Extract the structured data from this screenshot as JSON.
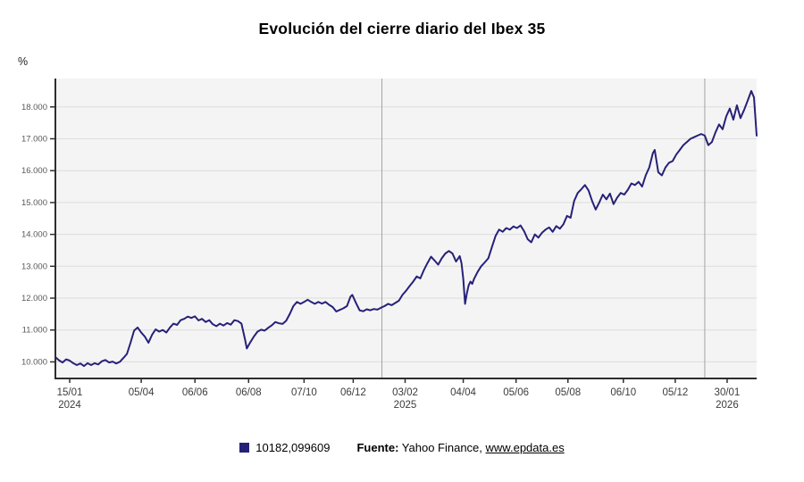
{
  "title": "Evolución del cierre diario del Ibex 35",
  "y_axis_unit": "%",
  "legend": {
    "series_label": "10182,099609"
  },
  "source": {
    "label": "Fuente:",
    "name": "Yahoo Finance,",
    "link": "www.epdata.es"
  },
  "colors": {
    "line": "#262178",
    "legend_swatch": "#262178",
    "plot_bg": "#f4f4f4",
    "grid": "#dcdcdc",
    "axis": "#2e2e2e",
    "year_line": "#a3a3a3"
  },
  "chart_data": {
    "type": "line",
    "title": "Evolución del cierre diario del Ibex 35",
    "ylabel": "%",
    "legend_entries": [
      "10182,099609"
    ],
    "grid": true,
    "ylim": [
      9480,
      18890
    ],
    "y_ticks": [
      {
        "value": 10000,
        "label": "10.000"
      },
      {
        "value": 11000,
        "label": "11.000"
      },
      {
        "value": 12000,
        "label": "12.000"
      },
      {
        "value": 13000,
        "label": "13.000"
      },
      {
        "value": 14000,
        "label": "14.000"
      },
      {
        "value": 15000,
        "label": "15.000"
      },
      {
        "value": 16000,
        "label": "16.000"
      },
      {
        "value": 17000,
        "label": "17.000"
      },
      {
        "value": 18000,
        "label": "18.000"
      }
    ],
    "x_ticks": [
      {
        "f": 0.0204,
        "label": "15/01",
        "year": "2024"
      },
      {
        "f": 0.1224,
        "label": "05/04"
      },
      {
        "f": 0.199,
        "label": "06/06"
      },
      {
        "f": 0.2755,
        "label": "06/08"
      },
      {
        "f": 0.3546,
        "label": "07/10"
      },
      {
        "f": 0.4247,
        "label": "06/12"
      },
      {
        "f": 0.4987,
        "label": "03/02",
        "year": "2025"
      },
      {
        "f": 0.5816,
        "label": "04/04"
      },
      {
        "f": 0.6569,
        "label": "05/06"
      },
      {
        "f": 0.7309,
        "label": "05/08"
      },
      {
        "f": 0.8099,
        "label": "06/10"
      },
      {
        "f": 0.8839,
        "label": "05/12"
      },
      {
        "f": 0.9579,
        "label": "30/01",
        "year": "2026"
      }
    ],
    "year_lines": [
      0.4656,
      0.926
    ],
    "points": [
      [
        0.0,
        10150
      ],
      [
        0.0051,
        10050
      ],
      [
        0.0102,
        9980
      ],
      [
        0.0153,
        10080
      ],
      [
        0.0204,
        10040
      ],
      [
        0.0255,
        9960
      ],
      [
        0.0306,
        9900
      ],
      [
        0.0357,
        9950
      ],
      [
        0.0408,
        9870
      ],
      [
        0.0459,
        9960
      ],
      [
        0.051,
        9900
      ],
      [
        0.0561,
        9960
      ],
      [
        0.0612,
        9920
      ],
      [
        0.0663,
        10020
      ],
      [
        0.0714,
        10060
      ],
      [
        0.0765,
        9980
      ],
      [
        0.0816,
        10010
      ],
      [
        0.0867,
        9950
      ],
      [
        0.0918,
        10000
      ],
      [
        0.0969,
        10120
      ],
      [
        0.102,
        10250
      ],
      [
        0.1071,
        10600
      ],
      [
        0.1122,
        10980
      ],
      [
        0.1173,
        11080
      ],
      [
        0.1224,
        10920
      ],
      [
        0.1276,
        10790
      ],
      [
        0.1327,
        10600
      ],
      [
        0.1378,
        10850
      ],
      [
        0.1429,
        11020
      ],
      [
        0.148,
        10950
      ],
      [
        0.1531,
        11000
      ],
      [
        0.1582,
        10920
      ],
      [
        0.1633,
        11080
      ],
      [
        0.1684,
        11200
      ],
      [
        0.1735,
        11160
      ],
      [
        0.1786,
        11310
      ],
      [
        0.1837,
        11350
      ],
      [
        0.1888,
        11420
      ],
      [
        0.1939,
        11380
      ],
      [
        0.199,
        11430
      ],
      [
        0.2041,
        11300
      ],
      [
        0.2092,
        11350
      ],
      [
        0.2143,
        11250
      ],
      [
        0.2194,
        11310
      ],
      [
        0.2245,
        11180
      ],
      [
        0.2296,
        11120
      ],
      [
        0.2347,
        11200
      ],
      [
        0.2398,
        11140
      ],
      [
        0.2449,
        11220
      ],
      [
        0.25,
        11170
      ],
      [
        0.2551,
        11310
      ],
      [
        0.2602,
        11280
      ],
      [
        0.2653,
        11200
      ],
      [
        0.2704,
        10700
      ],
      [
        0.273,
        10420
      ],
      [
        0.2781,
        10620
      ],
      [
        0.2832,
        10800
      ],
      [
        0.2883,
        10950
      ],
      [
        0.2934,
        11010
      ],
      [
        0.2985,
        10980
      ],
      [
        0.3036,
        11070
      ],
      [
        0.3087,
        11150
      ],
      [
        0.3138,
        11250
      ],
      [
        0.3189,
        11210
      ],
      [
        0.324,
        11190
      ],
      [
        0.3291,
        11290
      ],
      [
        0.3342,
        11500
      ],
      [
        0.3393,
        11750
      ],
      [
        0.3444,
        11880
      ],
      [
        0.3495,
        11820
      ],
      [
        0.3546,
        11880
      ],
      [
        0.3597,
        11950
      ],
      [
        0.3648,
        11880
      ],
      [
        0.3699,
        11820
      ],
      [
        0.375,
        11880
      ],
      [
        0.3801,
        11830
      ],
      [
        0.3852,
        11880
      ],
      [
        0.3903,
        11790
      ],
      [
        0.3954,
        11720
      ],
      [
        0.4005,
        11580
      ],
      [
        0.4056,
        11630
      ],
      [
        0.4107,
        11680
      ],
      [
        0.4158,
        11750
      ],
      [
        0.4209,
        12050
      ],
      [
        0.4235,
        12100
      ],
      [
        0.4286,
        11850
      ],
      [
        0.4337,
        11620
      ],
      [
        0.4388,
        11590
      ],
      [
        0.4439,
        11650
      ],
      [
        0.449,
        11620
      ],
      [
        0.4541,
        11660
      ],
      [
        0.4592,
        11640
      ],
      [
        0.4643,
        11700
      ],
      [
        0.4694,
        11750
      ],
      [
        0.4745,
        11820
      ],
      [
        0.4796,
        11780
      ],
      [
        0.4847,
        11850
      ],
      [
        0.4898,
        11920
      ],
      [
        0.4949,
        12100
      ],
      [
        0.5,
        12230
      ],
      [
        0.5051,
        12380
      ],
      [
        0.5102,
        12520
      ],
      [
        0.5153,
        12680
      ],
      [
        0.5204,
        12620
      ],
      [
        0.5255,
        12880
      ],
      [
        0.5306,
        13100
      ],
      [
        0.5357,
        13300
      ],
      [
        0.5408,
        13180
      ],
      [
        0.5459,
        13050
      ],
      [
        0.551,
        13250
      ],
      [
        0.5561,
        13400
      ],
      [
        0.5612,
        13480
      ],
      [
        0.5663,
        13400
      ],
      [
        0.5714,
        13150
      ],
      [
        0.5765,
        13320
      ],
      [
        0.5791,
        13100
      ],
      [
        0.5816,
        12600
      ],
      [
        0.5842,
        11820
      ],
      [
        0.5867,
        12150
      ],
      [
        0.5893,
        12400
      ],
      [
        0.5918,
        12520
      ],
      [
        0.5944,
        12450
      ],
      [
        0.5969,
        12600
      ],
      [
        0.602,
        12820
      ],
      [
        0.6071,
        13000
      ],
      [
        0.6122,
        13120
      ],
      [
        0.6173,
        13250
      ],
      [
        0.6224,
        13600
      ],
      [
        0.6276,
        13950
      ],
      [
        0.6327,
        14150
      ],
      [
        0.6378,
        14080
      ],
      [
        0.6429,
        14200
      ],
      [
        0.648,
        14150
      ],
      [
        0.6531,
        14250
      ],
      [
        0.6582,
        14200
      ],
      [
        0.6633,
        14280
      ],
      [
        0.6684,
        14100
      ],
      [
        0.6735,
        13850
      ],
      [
        0.6786,
        13750
      ],
      [
        0.6837,
        14000
      ],
      [
        0.6888,
        13900
      ],
      [
        0.6939,
        14050
      ],
      [
        0.699,
        14150
      ],
      [
        0.7041,
        14220
      ],
      [
        0.7092,
        14080
      ],
      [
        0.7143,
        14260
      ],
      [
        0.7194,
        14180
      ],
      [
        0.7245,
        14320
      ],
      [
        0.7296,
        14580
      ],
      [
        0.7347,
        14520
      ],
      [
        0.7398,
        15050
      ],
      [
        0.7449,
        15300
      ],
      [
        0.75,
        15420
      ],
      [
        0.7551,
        15550
      ],
      [
        0.7602,
        15380
      ],
      [
        0.7653,
        15050
      ],
      [
        0.7704,
        14780
      ],
      [
        0.7755,
        15000
      ],
      [
        0.7806,
        15250
      ],
      [
        0.7857,
        15100
      ],
      [
        0.7908,
        15280
      ],
      [
        0.7959,
        14950
      ],
      [
        0.801,
        15150
      ],
      [
        0.8061,
        15300
      ],
      [
        0.8112,
        15250
      ],
      [
        0.8163,
        15400
      ],
      [
        0.8214,
        15600
      ],
      [
        0.8265,
        15550
      ],
      [
        0.8316,
        15650
      ],
      [
        0.8367,
        15500
      ],
      [
        0.8418,
        15850
      ],
      [
        0.8469,
        16100
      ],
      [
        0.852,
        16550
      ],
      [
        0.8546,
        16650
      ],
      [
        0.8597,
        15950
      ],
      [
        0.8648,
        15850
      ],
      [
        0.8699,
        16100
      ],
      [
        0.875,
        16250
      ],
      [
        0.8801,
        16300
      ],
      [
        0.8852,
        16500
      ],
      [
        0.8903,
        16650
      ],
      [
        0.8954,
        16800
      ],
      [
        0.9005,
        16900
      ],
      [
        0.9056,
        17000
      ],
      [
        0.9107,
        17050
      ],
      [
        0.9158,
        17100
      ],
      [
        0.9209,
        17150
      ],
      [
        0.926,
        17100
      ],
      [
        0.9311,
        16800
      ],
      [
        0.9362,
        16900
      ],
      [
        0.9413,
        17200
      ],
      [
        0.9464,
        17450
      ],
      [
        0.9515,
        17300
      ],
      [
        0.9566,
        17700
      ],
      [
        0.9617,
        17950
      ],
      [
        0.9668,
        17600
      ],
      [
        0.9719,
        18050
      ],
      [
        0.977,
        17650
      ],
      [
        0.9821,
        17900
      ],
      [
        0.9872,
        18200
      ],
      [
        0.9923,
        18500
      ],
      [
        0.9962,
        18300
      ],
      [
        1.0,
        17100
      ]
    ]
  }
}
